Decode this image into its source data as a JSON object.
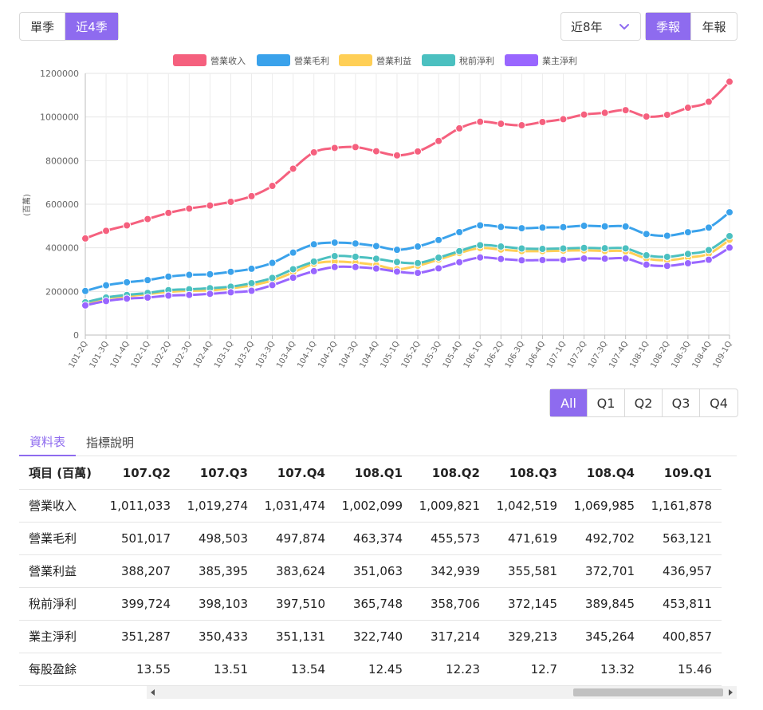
{
  "controls": {
    "period_tabs": [
      {
        "label": "單季",
        "active": false
      },
      {
        "label": "近4季",
        "active": true
      }
    ],
    "range_select": {
      "value": "近8年"
    },
    "report_tabs": [
      {
        "label": "季報",
        "active": true
      },
      {
        "label": "年報",
        "active": false
      }
    ],
    "quarter_filters": [
      {
        "label": "All",
        "active": true
      },
      {
        "label": "Q1",
        "active": false
      },
      {
        "label": "Q2",
        "active": false
      },
      {
        "label": "Q3",
        "active": false
      },
      {
        "label": "Q4",
        "active": false
      }
    ]
  },
  "chart_data": {
    "type": "line",
    "ylabel": "(百萬)",
    "ylim": [
      0,
      1200000
    ],
    "yticks": [
      0,
      200000,
      400000,
      600000,
      800000,
      1000000,
      1200000
    ],
    "categories": [
      "101-2Q",
      "101-3Q",
      "101-4Q",
      "102-1Q",
      "102-2Q",
      "102-3Q",
      "102-4Q",
      "103-1Q",
      "103-2Q",
      "103-3Q",
      "103-4Q",
      "104-1Q",
      "104-2Q",
      "104-3Q",
      "104-4Q",
      "105-1Q",
      "105-2Q",
      "105-3Q",
      "105-4Q",
      "106-1Q",
      "106-2Q",
      "106-3Q",
      "106-4Q",
      "107-1Q",
      "107-2Q",
      "107-3Q",
      "107-4Q",
      "108-1Q",
      "108-2Q",
      "108-3Q",
      "108-4Q",
      "109-1Q"
    ],
    "series": [
      {
        "name": "營業收入",
        "color": "#f5607e",
        "values": [
          443000,
          478000,
          503000,
          532000,
          560000,
          580000,
          594000,
          611000,
          637000,
          684000,
          763000,
          838000,
          858000,
          862000,
          843000,
          824000,
          842000,
          890000,
          948000,
          978000,
          969000,
          962000,
          977000,
          990000,
          1011033,
          1019274,
          1031474,
          1002099,
          1009821,
          1042519,
          1069985,
          1161878
        ]
      },
      {
        "name": "營業毛利",
        "color": "#3aa2eb",
        "values": [
          202000,
          228000,
          242000,
          252000,
          268000,
          276000,
          279000,
          290000,
          304000,
          331000,
          378000,
          416000,
          424000,
          420000,
          408000,
          391000,
          406000,
          436000,
          472000,
          503000,
          496000,
          490000,
          493000,
          495000,
          501017,
          498503,
          497874,
          463374,
          455573,
          471619,
          492702,
          563121
        ]
      },
      {
        "name": "營業利益",
        "color": "#ffcf56",
        "values": [
          144000,
          168000,
          178000,
          188000,
          198000,
          203000,
          205000,
          214000,
          228000,
          250000,
          287000,
          327000,
          337000,
          332000,
          321000,
          302000,
          318000,
          346000,
          376000,
          399000,
          392000,
          385000,
          385000,
          387000,
          388207,
          385395,
          383624,
          351063,
          342939,
          355581,
          372701,
          436957
        ]
      },
      {
        "name": "稅前淨利",
        "color": "#4bc0c0",
        "values": [
          150000,
          172000,
          184000,
          193000,
          206000,
          210000,
          215000,
          222000,
          238000,
          262000,
          302000,
          337000,
          362000,
          359000,
          350000,
          335000,
          330000,
          355000,
          385000,
          412000,
          406000,
          397000,
          395000,
          397000,
          399724,
          398103,
          397510,
          365748,
          358706,
          372145,
          389845,
          453811
        ]
      },
      {
        "name": "業主淨利",
        "color": "#9966ff",
        "values": [
          136000,
          156000,
          167000,
          172000,
          181000,
          184000,
          189000,
          196000,
          203000,
          229000,
          263000,
          293000,
          312000,
          312000,
          305000,
          291000,
          285000,
          306000,
          334000,
          356000,
          349000,
          343000,
          344000,
          345000,
          351287,
          350433,
          351131,
          322740,
          317214,
          329213,
          345264,
          400857
        ]
      }
    ]
  },
  "tabs": [
    {
      "label": "資料表",
      "active": true
    },
    {
      "label": "指標說明",
      "active": false
    }
  ],
  "table": {
    "header_label": "項目 (百萬)",
    "columns": [
      "107.Q2",
      "107.Q3",
      "107.Q4",
      "108.Q1",
      "108.Q2",
      "108.Q3",
      "108.Q4",
      "109.Q1"
    ],
    "rows": [
      {
        "label": "營業收入",
        "values": [
          "1,011,033",
          "1,019,274",
          "1,031,474",
          "1,002,099",
          "1,009,821",
          "1,042,519",
          "1,069,985",
          "1,161,878"
        ]
      },
      {
        "label": "營業毛利",
        "values": [
          "501,017",
          "498,503",
          "497,874",
          "463,374",
          "455,573",
          "471,619",
          "492,702",
          "563,121"
        ]
      },
      {
        "label": "營業利益",
        "values": [
          "388,207",
          "385,395",
          "383,624",
          "351,063",
          "342,939",
          "355,581",
          "372,701",
          "436,957"
        ]
      },
      {
        "label": "稅前淨利",
        "values": [
          "399,724",
          "398,103",
          "397,510",
          "365,748",
          "358,706",
          "372,145",
          "389,845",
          "453,811"
        ]
      },
      {
        "label": "業主淨利",
        "values": [
          "351,287",
          "350,433",
          "351,131",
          "322,740",
          "317,214",
          "329,213",
          "345,264",
          "400,857"
        ]
      },
      {
        "label": "每股盈餘",
        "values": [
          "13.55",
          "13.51",
          "13.54",
          "12.45",
          "12.23",
          "12.7",
          "13.32",
          "15.46"
        ]
      }
    ]
  }
}
